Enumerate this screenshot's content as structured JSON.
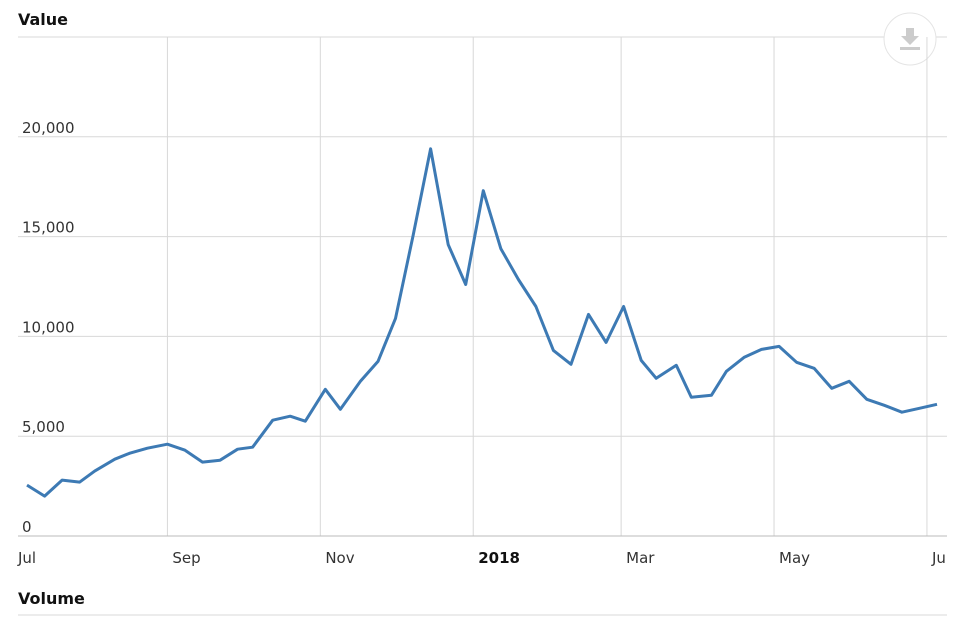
{
  "chart_data": {
    "type": "line",
    "panel_title": "Value",
    "lower_panel_title": "Volume",
    "x": [
      6,
      13,
      20,
      27,
      33,
      41,
      47,
      54,
      62,
      69,
      76,
      83,
      90,
      96,
      104,
      111,
      117,
      125,
      131,
      139,
      146,
      153,
      160,
      167,
      174,
      181,
      188,
      195,
      202,
      209,
      216,
      223,
      230,
      237,
      244,
      251,
      257,
      265,
      271,
      279,
      285,
      292,
      299,
      306,
      313,
      320,
      327,
      334,
      341,
      348,
      355,
      362,
      369
    ],
    "series": [
      {
        "color": "#3d7ab4",
        "values": [
          2550,
          2000,
          2800,
          2700,
          3250,
          3850,
          4150,
          4400,
          4600,
          4300,
          3700,
          3800,
          4350,
          4450,
          5800,
          6000,
          5750,
          7350,
          6350,
          7750,
          8750,
          10900,
          15050,
          19400,
          14600,
          12600,
          17300,
          14400,
          12850,
          11500,
          9300,
          8600,
          11100,
          9700,
          11500,
          8800,
          7900,
          8550,
          6950,
          7050,
          8250,
          8950,
          9350,
          9500,
          8700,
          8400,
          7400,
          7750,
          6850,
          6550,
          6200,
          6400,
          6600
        ]
      }
    ],
    "xlim": [
      0,
      373
    ],
    "xticks": [
      {
        "value": 0,
        "label": "Jul"
      },
      {
        "value": 62,
        "label": "Sep"
      },
      {
        "value": 123,
        "label": "Nov"
      },
      {
        "value": 184,
        "label": "2018"
      },
      {
        "value": 243,
        "label": "Mar"
      },
      {
        "value": 304,
        "label": "May"
      },
      {
        "value": 365,
        "label": "Ju"
      }
    ],
    "ylim": [
      0,
      25000
    ],
    "yticks": [
      {
        "value": 0,
        "label": "0"
      },
      {
        "value": 5000,
        "label": "5,000"
      },
      {
        "value": 10000,
        "label": "10,000"
      },
      {
        "value": 15000,
        "label": "15,000"
      },
      {
        "value": 20000,
        "label": "20,000"
      }
    ],
    "grid": true
  }
}
